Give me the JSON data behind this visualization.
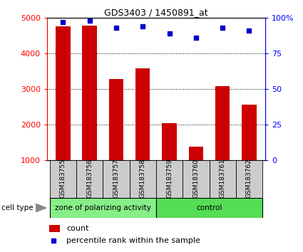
{
  "title": "GDS3403 / 1450891_at",
  "samples": [
    "GSM183755",
    "GSM183756",
    "GSM183757",
    "GSM183758",
    "GSM183759",
    "GSM183760",
    "GSM183761",
    "GSM183762"
  ],
  "counts": [
    4750,
    4780,
    3280,
    3570,
    2030,
    1380,
    3080,
    2560
  ],
  "percentiles": [
    97,
    98,
    93,
    94,
    89,
    86,
    93,
    91
  ],
  "groups": [
    {
      "label": "zone of polarizing activity",
      "samples": [
        0,
        1,
        2,
        3
      ],
      "color": "#88ee88"
    },
    {
      "label": "control",
      "samples": [
        4,
        5,
        6,
        7
      ],
      "color": "#55dd55"
    }
  ],
  "ylim_left": [
    1000,
    5000
  ],
  "ylim_right": [
    0,
    100
  ],
  "yticks_left": [
    1000,
    2000,
    3000,
    4000,
    5000
  ],
  "yticks_right": [
    0,
    25,
    50,
    75,
    100
  ],
  "bar_color": "#cc0000",
  "dot_color": "#0000cc",
  "bar_width": 0.55,
  "label_area_color": "#cccccc",
  "cell_type_label": "cell type"
}
